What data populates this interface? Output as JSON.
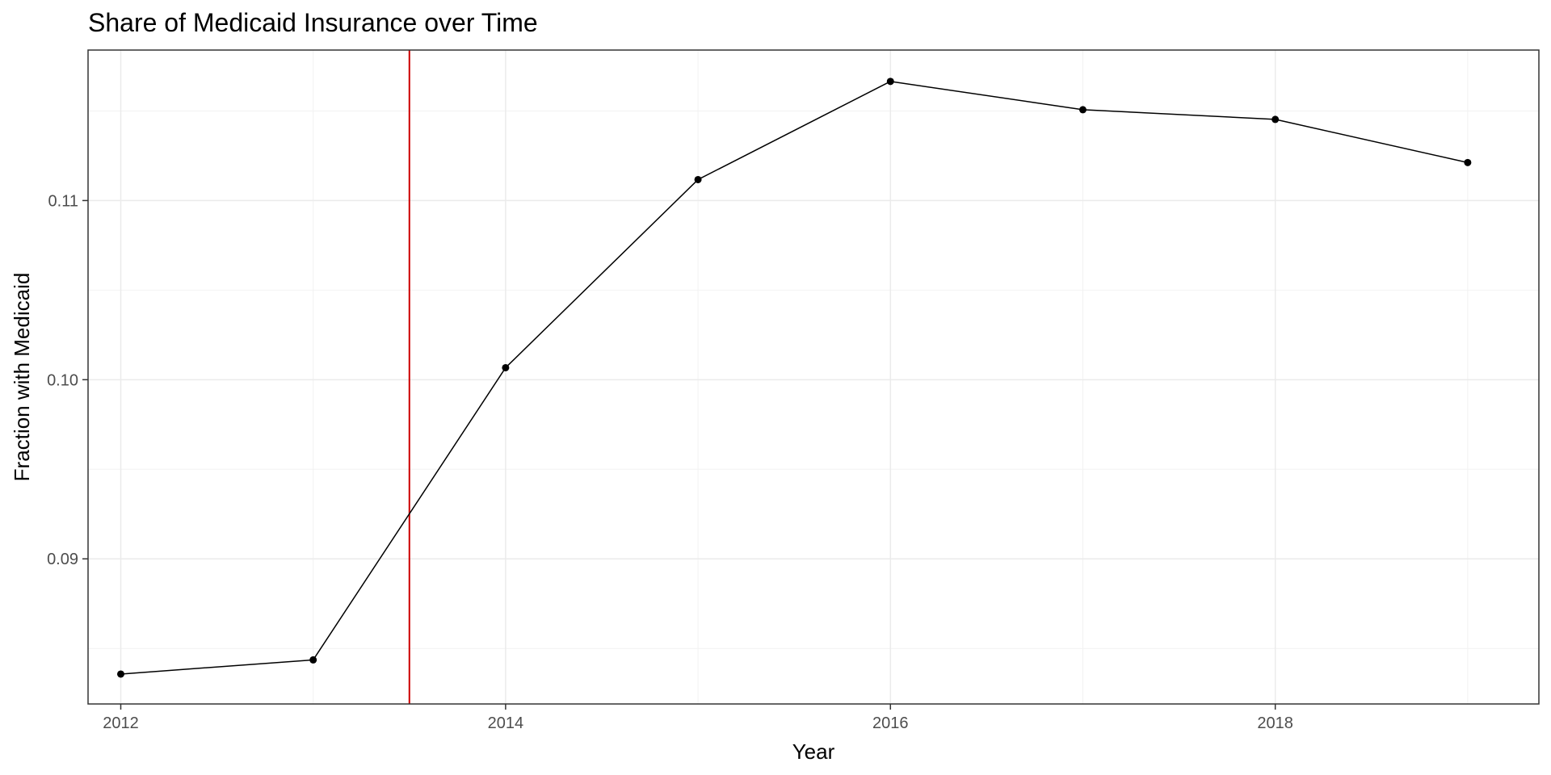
{
  "chart_data": {
    "type": "line",
    "title": "Share of Medicaid Insurance over Time",
    "xlabel": "Year",
    "ylabel": "Fraction with Medicaid",
    "x": [
      2012,
      2013,
      2014,
      2015,
      2016,
      2017,
      2018,
      2019
    ],
    "series": [
      {
        "values": [
          0.08357,
          0.08436,
          0.10067,
          0.11117,
          0.11665,
          0.11507,
          0.11453,
          0.11212
        ]
      }
    ],
    "xlim": [
      2011.83,
      2019.37
    ],
    "ylim": [
      0.0819,
      0.1184
    ],
    "x_ticks": [
      2012,
      2014,
      2016,
      2018
    ],
    "x_tick_labels": [
      "2012",
      "2014",
      "2016",
      "2018"
    ],
    "y_ticks": [
      0.09,
      0.1,
      0.11
    ],
    "y_tick_labels": [
      "0.09",
      "0.10",
      "0.11"
    ],
    "reference_line": {
      "axis": "x",
      "value": 2013.5,
      "color": "#cc0000"
    },
    "line_color": "#000000",
    "grid": true,
    "legend": "none"
  }
}
